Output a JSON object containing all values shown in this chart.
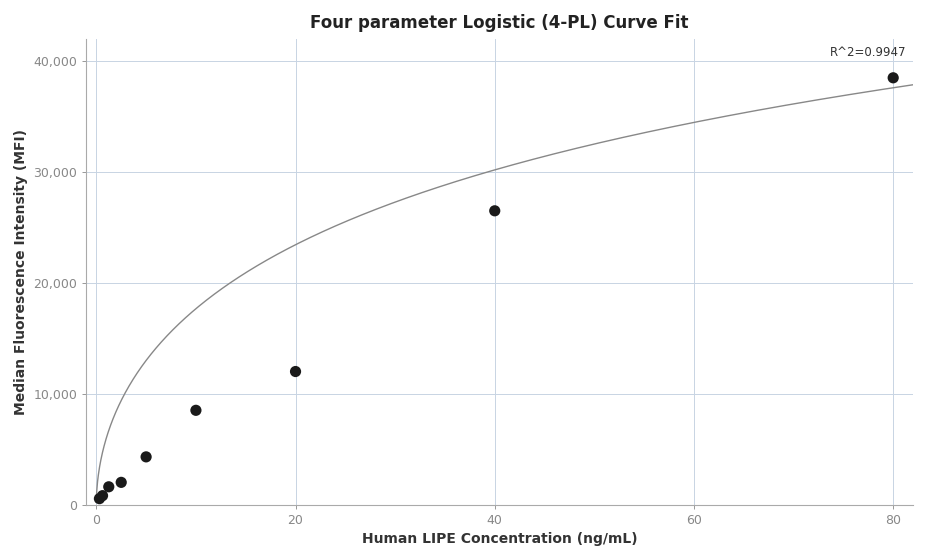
{
  "title": "Four parameter Logistic (4-PL) Curve Fit",
  "xlabel": "Human LIPE Concentration (ng/mL)",
  "ylabel": "Median Fluorescence Intensity (MFI)",
  "scatter_x": [
    0.3125,
    0.625,
    1.25,
    2.5,
    5.0,
    10.0,
    20.0,
    40.0,
    80.0
  ],
  "scatter_y": [
    530,
    800,
    1600,
    2000,
    4300,
    8500,
    12000,
    26500,
    38500
  ],
  "xlim": [
    -1,
    82
  ],
  "ylim": [
    0,
    42000
  ],
  "xticks": [
    0,
    20,
    40,
    60,
    80
  ],
  "yticks": [
    0,
    10000,
    20000,
    30000,
    40000
  ],
  "ytick_labels": [
    "0",
    "10,000",
    "20,000",
    "30,000",
    "40,000"
  ],
  "r_squared": "R^2=0.9947",
  "scatter_color": "#1a1a1a",
  "line_color": "#888888",
  "grid_color": "#c8d4e3",
  "background_color": "#ffffff",
  "title_fontsize": 12,
  "label_fontsize": 10,
  "tick_fontsize": 9,
  "annotation_fontsize": 8.5,
  "spine_color": "#aaaaaa"
}
